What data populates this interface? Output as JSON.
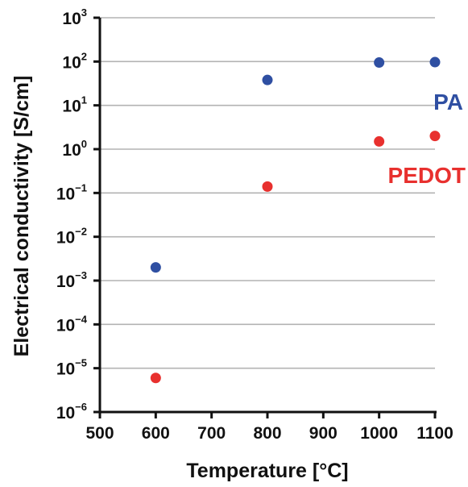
{
  "chart_data": {
    "type": "scatter",
    "title": "",
    "xlabel": "Temperature [°C]",
    "ylabel": "Electrical conductivity [S/cm]",
    "x_scale": "linear",
    "y_scale": "log",
    "xlim": [
      500,
      1100
    ],
    "ylim": [
      1e-06,
      1000
    ],
    "x_ticks": [
      "500",
      "600",
      "700",
      "800",
      "900",
      "1000",
      "1100"
    ],
    "y_ticks": [
      {
        "base": "10",
        "exp": "3"
      },
      {
        "base": "10",
        "exp": "2"
      },
      {
        "base": "10",
        "exp": "1"
      },
      {
        "base": "10",
        "exp": "0"
      },
      {
        "base": "10",
        "exp": "−1"
      },
      {
        "base": "10",
        "exp": "−2"
      },
      {
        "base": "10",
        "exp": "−3"
      },
      {
        "base": "10",
        "exp": "−4"
      },
      {
        "base": "10",
        "exp": "−5"
      },
      {
        "base": "10",
        "exp": "−6"
      }
    ],
    "grid": "horizontal",
    "series": [
      {
        "name": "PA",
        "color": "#2f4fa2",
        "points": [
          {
            "x": 600,
            "y": 0.002
          },
          {
            "x": 800,
            "y": 38
          },
          {
            "x": 1000,
            "y": 95
          },
          {
            "x": 1100,
            "y": 97
          }
        ]
      },
      {
        "name": "PEDOT",
        "color": "#e8302e",
        "points": [
          {
            "x": 600,
            "y": 6e-06
          },
          {
            "x": 800,
            "y": 0.14
          },
          {
            "x": 1000,
            "y": 1.5
          },
          {
            "x": 1100,
            "y": 2.0
          }
        ]
      }
    ]
  }
}
